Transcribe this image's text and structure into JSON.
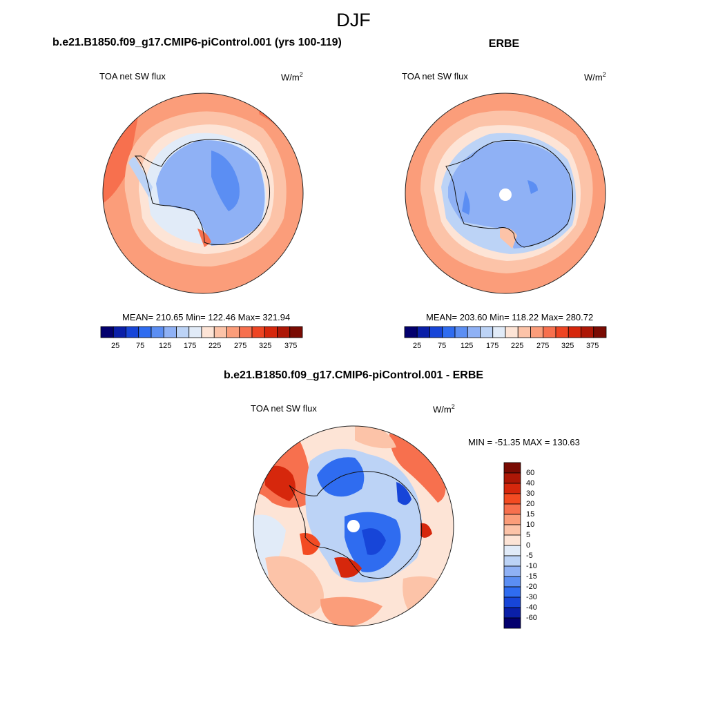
{
  "figure": {
    "title": "DJF"
  },
  "panels": [
    {
      "title": "b.e21.B1850.f09_g17.CMIP6-piControl.001 (yrs 100-119)",
      "variable": "TOA net SW flux",
      "units": "W/m",
      "units_exponent": "2",
      "stats": "MEAN= 210.65  Min= 122.46  Max= 321.94",
      "colorbar_ticks": [
        "25",
        "75",
        "125",
        "175",
        "225",
        "275",
        "325",
        "375"
      ]
    },
    {
      "title": "ERBE",
      "variable": "TOA net SW flux",
      "units": "W/m",
      "units_exponent": "2",
      "stats": "MEAN= 203.60  Min= 118.22  Max= 280.72",
      "colorbar_ticks": [
        "25",
        "75",
        "125",
        "175",
        "225",
        "275",
        "325",
        "375"
      ]
    },
    {
      "title": "b.e21.B1850.f09_g17.CMIP6-piControl.001 - ERBE",
      "variable": "TOA net SW flux",
      "units": "W/m",
      "units_exponent": "2",
      "minmax": "MIN = -51.35 MAX = 130.63",
      "colorbar_ticks": [
        "60",
        "40",
        "30",
        "20",
        "15",
        "10",
        "5",
        "0",
        "-5",
        "-10",
        "-15",
        "-20",
        "-30",
        "-40",
        "-60"
      ]
    }
  ],
  "palettes": {
    "absolute": [
      "#03006e",
      "#0a1fa8",
      "#1745d8",
      "#2f6cf0",
      "#5b8ef3",
      "#8fb1f5",
      "#bcd3f6",
      "#e1ebf8",
      "#fde4d6",
      "#fcc3a8",
      "#fb9d7a",
      "#f7704e",
      "#ee4523",
      "#d6270c",
      "#ad1706",
      "#7a0b03"
    ],
    "difference": [
      "#7a0b03",
      "#ad1706",
      "#d6270c",
      "#f34b22",
      "#f7704e",
      "#fb9d7a",
      "#fcc3a8",
      "#fde4d6",
      "#e1ebf8",
      "#bcd3f6",
      "#8fb1f5",
      "#5b8ef3",
      "#2f6cf0",
      "#1745d8",
      "#0a1fa8",
      "#03006e"
    ]
  }
}
